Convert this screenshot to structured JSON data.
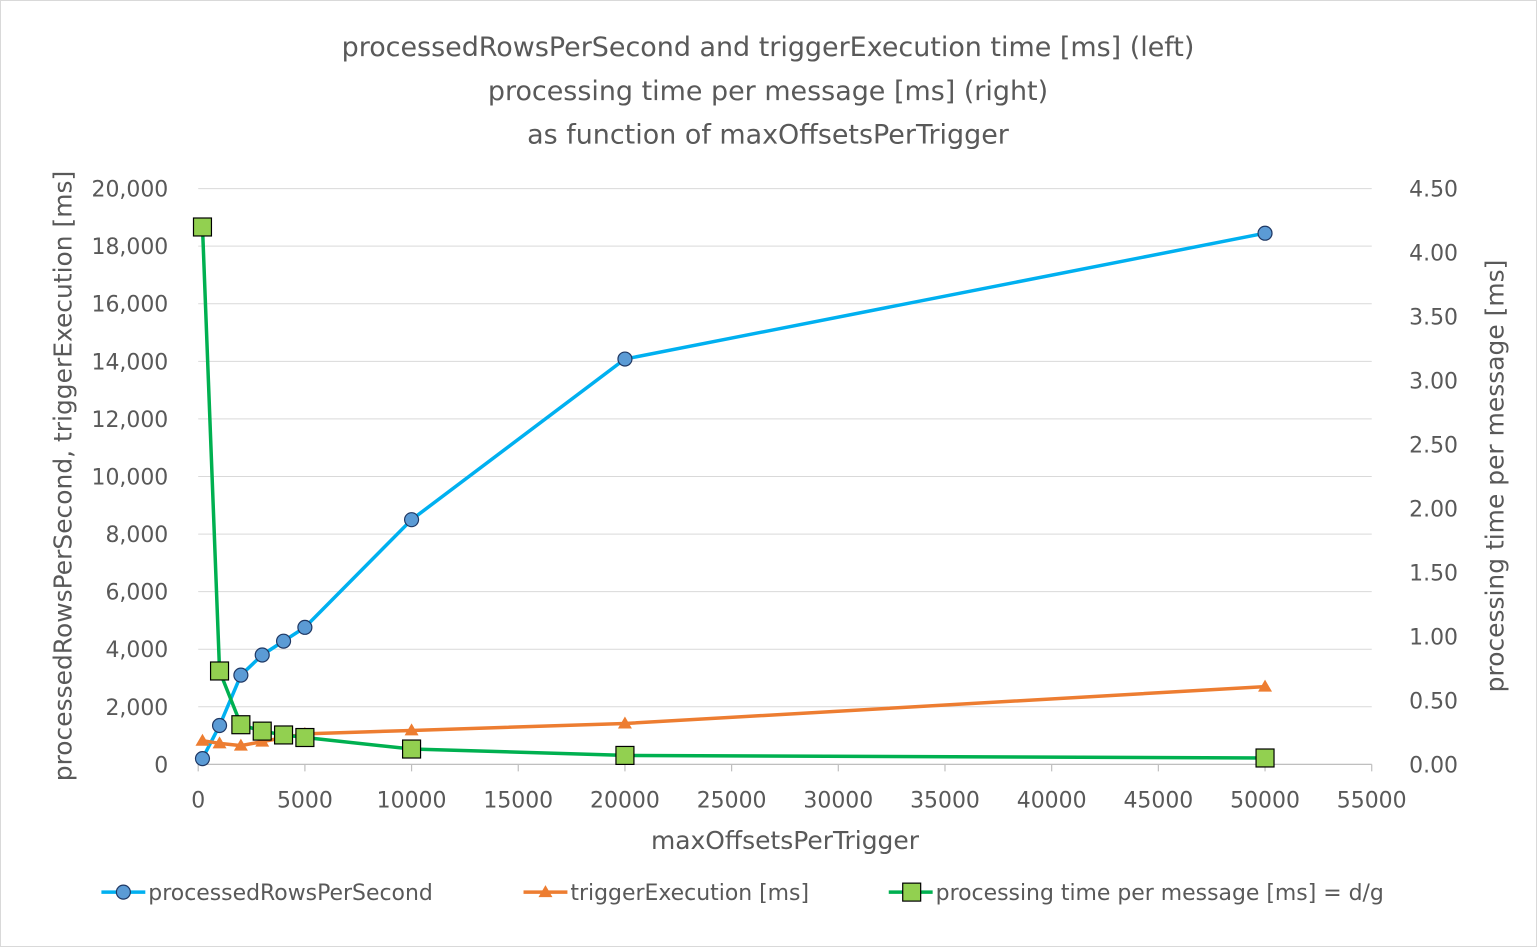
{
  "chart_data": {
    "type": "line",
    "title_lines": [
      "processedRowsPerSecond and triggerExecution time [ms] (left)",
      "processing time per message [ms] (right)",
      "as function of maxOffsetsPerTrigger"
    ],
    "xlabel": "maxOffsetsPerTrigger",
    "ylabel_left": "processedRowsPerSecond, triggerExecution [ms]",
    "ylabel_right": "processing time per message [ms]",
    "xlim": [
      0,
      55000
    ],
    "x_ticks": [
      "0",
      "5000",
      "10000",
      "15000",
      "20000",
      "25000",
      "30000",
      "35000",
      "40000",
      "45000",
      "50000",
      "55000"
    ],
    "ylim_left": [
      0,
      20000
    ],
    "y_ticks_left": [
      "0",
      "2,000",
      "4,000",
      "6,000",
      "8,000",
      "10,000",
      "12,000",
      "14,000",
      "16,000",
      "18,000",
      "20,000"
    ],
    "ylim_right": [
      0,
      4.5
    ],
    "y_ticks_right": [
      "0.00",
      "0.50",
      "1.00",
      "1.50",
      "2.00",
      "2.50",
      "3.00",
      "3.50",
      "4.00",
      "4.50"
    ],
    "grid": true,
    "legend_position": "bottom",
    "series": [
      {
        "name": "processedRowsPerSecond",
        "axis": "left",
        "color": "#00B0F0",
        "marker": "circle",
        "marker_fill": "#5B9BD5",
        "x": [
          200,
          1000,
          2000,
          3000,
          4000,
          5000,
          10000,
          20000,
          50000
        ],
        "values": [
          200,
          1350,
          3100,
          3800,
          4280,
          4760,
          8500,
          14080,
          18450
        ]
      },
      {
        "name": "triggerExecution [ms]",
        "axis": "left",
        "color": "#ED7D31",
        "marker": "triangle",
        "marker_fill": "#ED7D31",
        "x": [
          200,
          1000,
          2000,
          3000,
          4000,
          5000,
          10000,
          20000,
          50000
        ],
        "values": [
          820,
          730,
          650,
          790,
          930,
          1060,
          1180,
          1420,
          2700
        ]
      },
      {
        "name": "processing time per message [ms] = d/g",
        "axis": "right",
        "color": "#00B050",
        "marker": "square",
        "marker_fill": "#92D050",
        "x": [
          200,
          1000,
          2000,
          3000,
          4000,
          5000,
          10000,
          20000,
          50000
        ],
        "values": [
          4.2,
          0.73,
          0.31,
          0.26,
          0.23,
          0.21,
          0.12,
          0.07,
          0.05
        ]
      }
    ]
  }
}
